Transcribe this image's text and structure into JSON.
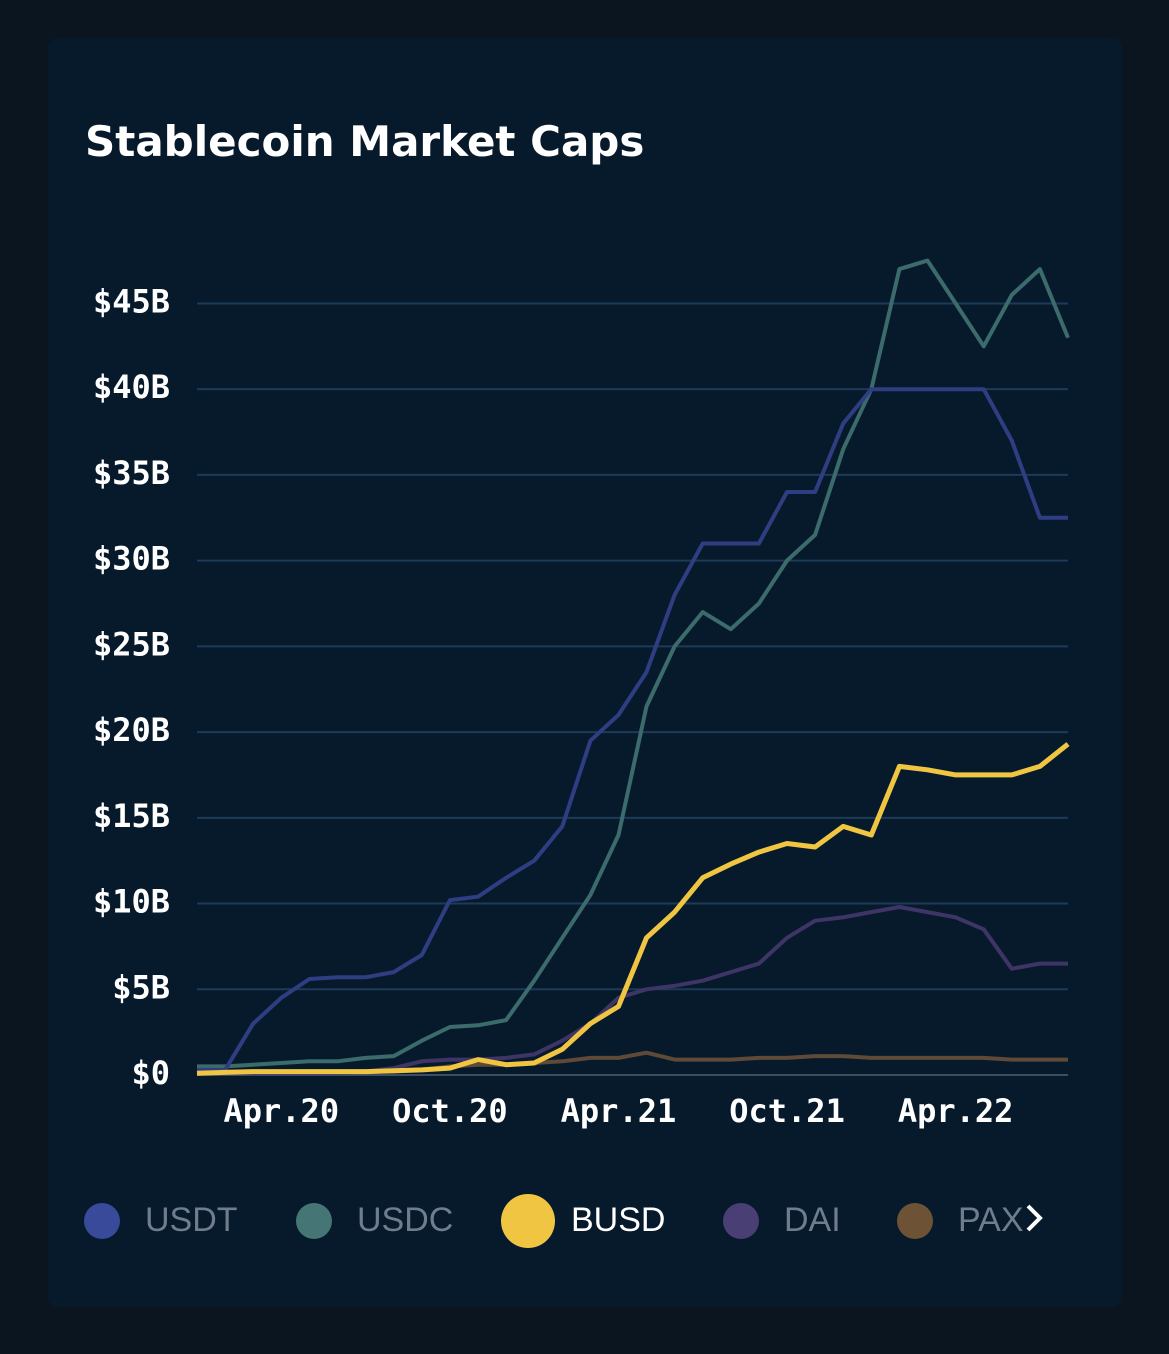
{
  "chart_data": {
    "type": "line",
    "title": "Stablecoin Market Caps",
    "x": [
      "2020-01",
      "2020-02",
      "2020-03",
      "2020-04",
      "2020-05",
      "2020-06",
      "2020-07",
      "2020-08",
      "2020-09",
      "2020-10",
      "2020-11",
      "2020-12",
      "2021-01",
      "2021-02",
      "2021-03",
      "2021-04",
      "2021-05",
      "2021-06",
      "2021-07",
      "2021-08",
      "2021-09",
      "2021-10",
      "2021-11",
      "2021-12",
      "2022-01",
      "2022-02",
      "2022-03",
      "2022-04",
      "2022-05",
      "2022-06",
      "2022-07",
      "2022-08"
    ],
    "xlim": [
      "2020-01",
      "2022-08"
    ],
    "xticks": [
      {
        "value": "2020-04",
        "label": "Apr.20"
      },
      {
        "value": "2020-10",
        "label": "Oct.20"
      },
      {
        "value": "2021-04",
        "label": "Apr.21"
      },
      {
        "value": "2021-10",
        "label": "Oct.21"
      },
      {
        "value": "2022-04",
        "label": "Apr.22"
      }
    ],
    "ylim": [
      0,
      48
    ],
    "yticks": [
      {
        "value": 0,
        "label": "$0"
      },
      {
        "value": 5,
        "label": "$5B"
      },
      {
        "value": 10,
        "label": "$10B"
      },
      {
        "value": 15,
        "label": "$15B"
      },
      {
        "value": 20,
        "label": "$20B"
      },
      {
        "value": 25,
        "label": "$25B"
      },
      {
        "value": 30,
        "label": "$30B"
      },
      {
        "value": 35,
        "label": "$35B"
      },
      {
        "value": 40,
        "label": "$40B"
      },
      {
        "value": 45,
        "label": "$45B"
      }
    ],
    "grid": true,
    "highlighted": 2,
    "series": [
      {
        "name": "USDT",
        "color": "#2f3d82",
        "values": [
          0.3,
          0.3,
          3,
          4.5,
          5.6,
          5.7,
          5.7,
          6.0,
          7,
          10.2,
          10.4,
          11.5,
          12.5,
          14.5,
          19.5,
          21,
          23.5,
          28,
          31,
          31,
          31,
          34,
          34,
          38,
          40,
          40,
          40,
          40,
          40,
          37,
          32.5,
          32.5
        ]
      },
      {
        "name": "USDC",
        "color": "#3c6b6b",
        "values": [
          0.5,
          0.5,
          0.6,
          0.7,
          0.8,
          0.8,
          1.0,
          1.1,
          2.0,
          2.8,
          2.9,
          3.2,
          5.5,
          8,
          10.5,
          14,
          21.5,
          25,
          27,
          26,
          27.5,
          30,
          31.5,
          36.5,
          40,
          47,
          47.5,
          45,
          42.5,
          45.5,
          47,
          43
        ]
      },
      {
        "name": "BUSD",
        "color": "#f0c541",
        "values": [
          0.1,
          0.15,
          0.2,
          0.2,
          0.2,
          0.2,
          0.2,
          0.25,
          0.3,
          0.4,
          0.9,
          0.6,
          0.7,
          1.5,
          3.0,
          4.0,
          8,
          9.5,
          11.5,
          12.3,
          13,
          13.5,
          13.3,
          14.5,
          14.0,
          18,
          17.8,
          17.5,
          17.5,
          17.5,
          18,
          19.3
        ]
      },
      {
        "name": "DAI",
        "color": "#3e3566",
        "values": [
          0.1,
          0.1,
          0.1,
          0.1,
          0.1,
          0.1,
          0.2,
          0.4,
          0.8,
          0.9,
          0.9,
          1.0,
          1.2,
          2.0,
          3.0,
          4.5,
          5.0,
          5.2,
          5.5,
          6.0,
          6.5,
          8.0,
          9.0,
          9.2,
          9.5,
          9.8,
          9.5,
          9.2,
          8.5,
          6.2,
          6.5,
          6.5
        ]
      },
      {
        "name": "PAX",
        "color": "#5e4a36",
        "values": [
          0.2,
          0.2,
          0.2,
          0.2,
          0.2,
          0.2,
          0.2,
          0.2,
          0.3,
          0.5,
          0.6,
          0.6,
          0.7,
          0.8,
          1.0,
          1.0,
          1.3,
          0.9,
          0.9,
          0.9,
          1.0,
          1.0,
          1.1,
          1.1,
          1.0,
          1.0,
          1.0,
          1.0,
          1.0,
          0.9,
          0.9,
          0.9
        ]
      }
    ]
  }
}
